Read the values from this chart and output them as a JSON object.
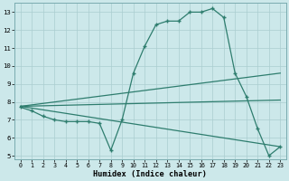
{
  "line1_x": [
    0,
    1,
    2,
    3,
    4,
    5,
    6,
    7,
    8,
    9,
    10,
    11,
    12,
    13,
    14,
    15,
    16,
    17,
    18,
    19,
    20,
    21,
    22,
    23
  ],
  "line1_y": [
    7.7,
    7.5,
    7.2,
    7.0,
    6.9,
    6.9,
    6.9,
    6.8,
    5.3,
    7.0,
    9.6,
    11.1,
    12.3,
    12.5,
    12.5,
    13.0,
    13.0,
    13.2,
    12.7,
    9.6,
    8.3,
    6.5,
    5.0,
    5.5
  ],
  "line2_x": [
    0,
    23
  ],
  "line2_y": [
    7.75,
    9.6
  ],
  "line3_x": [
    0,
    23
  ],
  "line3_y": [
    7.75,
    8.1
  ],
  "line4_x": [
    0,
    23
  ],
  "line4_y": [
    7.75,
    5.5
  ],
  "line_color": "#2e7d6e",
  "bg_color": "#cce8ea",
  "grid_color": "#aacdd0",
  "xlabel": "Humidex (Indice chaleur)",
  "ylim": [
    4.8,
    13.5
  ],
  "xlim": [
    -0.5,
    23.5
  ],
  "yticks": [
    5,
    6,
    7,
    8,
    9,
    10,
    11,
    12,
    13
  ],
  "xticks": [
    0,
    1,
    2,
    3,
    4,
    5,
    6,
    7,
    8,
    9,
    10,
    11,
    12,
    13,
    14,
    15,
    16,
    17,
    18,
    19,
    20,
    21,
    22,
    23
  ]
}
